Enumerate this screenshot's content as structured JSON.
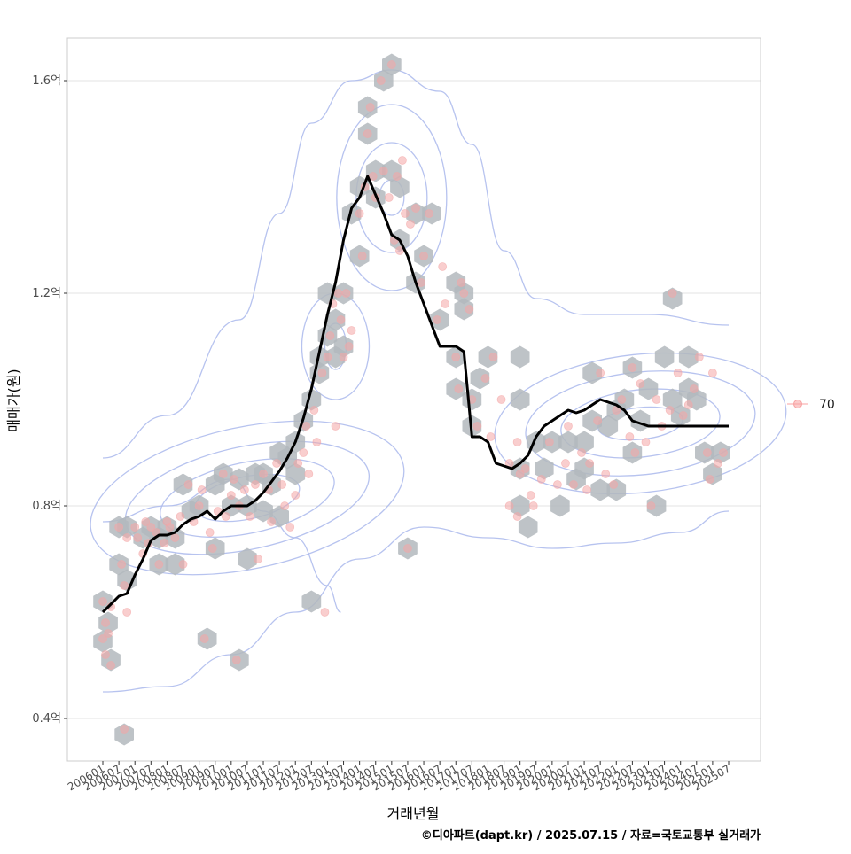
{
  "chart_data": {
    "type": "scatter",
    "title": "",
    "xlabel": "거래년월",
    "ylabel": "매매가(원)",
    "caption": "©디아파트(dapt.kr) / 2025.07.15 / 자료=국토교통부 실거래가",
    "y_unit": "억",
    "ylim": [
      0.32,
      1.68
    ],
    "y_ticks": [
      0.4,
      0.8,
      1.2,
      1.6
    ],
    "y_tick_labels": [
      "0.4억",
      "0.8억",
      "1.2억",
      "1.6억"
    ],
    "x_start": "2006-01",
    "x_end": "2025-07",
    "x_tick_labels": [
      "200601",
      "200607",
      "200701",
      "200707",
      "200801",
      "200807",
      "200901",
      "200907",
      "201001",
      "201007",
      "201101",
      "201107",
      "201201",
      "201207",
      "201301",
      "201307",
      "201401",
      "201407",
      "201501",
      "201507",
      "201601",
      "201607",
      "201701",
      "201707",
      "201801",
      "201807",
      "201901",
      "201907",
      "202001",
      "202007",
      "202101",
      "202107",
      "202201",
      "202207",
      "202301",
      "202307",
      "202401",
      "202407",
      "202501",
      "202507"
    ],
    "grid": true,
    "legend": {
      "position": "right",
      "entries": [
        {
          "label": "70",
          "color": "#f8a0a0"
        }
      ]
    },
    "colors": {
      "points": "#f4a6a6",
      "hexbin": "#b3b8bd",
      "contour": "#aab9ec",
      "trend": "#000000",
      "grid": "#e3e3e3",
      "panel_border": "#cccccc"
    },
    "moving_average": {
      "x": [
        "2006-01",
        "2006-04",
        "2006-07",
        "2006-10",
        "2007-01",
        "2007-04",
        "2007-07",
        "2007-10",
        "2008-01",
        "2008-04",
        "2008-07",
        "2008-10",
        "2009-01",
        "2009-04",
        "2009-07",
        "2009-10",
        "2010-01",
        "2010-04",
        "2010-07",
        "2010-10",
        "2011-01",
        "2011-04",
        "2011-07",
        "2011-10",
        "2012-01",
        "2012-04",
        "2012-07",
        "2012-10",
        "2013-01",
        "2013-04",
        "2013-07",
        "2013-10",
        "2014-01",
        "2014-04",
        "2014-07",
        "2014-10",
        "2015-01",
        "2015-04",
        "2015-07",
        "2015-10",
        "2016-01",
        "2016-04",
        "2016-07",
        "2016-10",
        "2017-01",
        "2017-04",
        "2017-07",
        "2017-10",
        "2018-01",
        "2018-04",
        "2018-07",
        "2018-10",
        "2019-01",
        "2019-04",
        "2019-07",
        "2019-10",
        "2020-01",
        "2020-04",
        "2020-07",
        "2020-10",
        "2021-01",
        "2021-04",
        "2021-07",
        "2021-10",
        "2022-01",
        "2022-04",
        "2022-07",
        "2022-10",
        "2023-01",
        "2023-04",
        "2023-07",
        "2023-10",
        "2024-01",
        "2024-04",
        "2024-07",
        "2024-10",
        "2025-01",
        "2025-04",
        "2025-07"
      ],
      "y": [
        0.6,
        0.615,
        0.63,
        0.635,
        0.67,
        0.7,
        0.735,
        0.745,
        0.745,
        0.75,
        0.765,
        0.775,
        0.78,
        0.79,
        0.775,
        0.79,
        0.8,
        0.8,
        0.8,
        0.81,
        0.825,
        0.845,
        0.865,
        0.89,
        0.92,
        0.965,
        1.02,
        1.09,
        1.16,
        1.22,
        1.3,
        1.36,
        1.38,
        1.42,
        1.385,
        1.35,
        1.31,
        1.3,
        1.27,
        1.22,
        1.18,
        1.14,
        1.1,
        1.1,
        1.1,
        1.09,
        0.93,
        0.93,
        0.92,
        0.88,
        0.875,
        0.87,
        0.88,
        0.895,
        0.93,
        0.95,
        0.96,
        0.97,
        0.98,
        0.975,
        0.98,
        0.99,
        1.0,
        0.995,
        0.99,
        0.98,
        0.96,
        0.955,
        0.95,
        0.95,
        0.95,
        0.95,
        0.95,
        0.95,
        0.95,
        0.95,
        0.95,
        0.95,
        0.95
      ]
    },
    "transactions": [
      [
        "2006-01",
        0.62
      ],
      [
        "2006-01",
        0.55
      ],
      [
        "2006-02",
        0.58
      ],
      [
        "2006-02",
        0.52
      ],
      [
        "2006-03",
        0.56
      ],
      [
        "2006-04",
        0.5
      ],
      [
        "2006-04",
        0.61
      ],
      [
        "2006-07",
        0.76
      ],
      [
        "2006-08",
        0.69
      ],
      [
        "2006-09",
        0.65
      ],
      [
        "2006-10",
        0.74
      ],
      [
        "2006-10",
        0.6
      ],
      [
        "2006-09",
        0.38
      ],
      [
        "2007-01",
        0.76
      ],
      [
        "2007-02",
        0.74
      ],
      [
        "2007-04",
        0.71
      ],
      [
        "2007-05",
        0.77
      ],
      [
        "2007-06",
        0.73
      ],
      [
        "2007-07",
        0.76
      ],
      [
        "2007-09",
        0.75
      ],
      [
        "2007-10",
        0.69
      ],
      [
        "2007-12",
        0.73
      ],
      [
        "2008-01",
        0.77
      ],
      [
        "2008-02",
        0.76
      ],
      [
        "2008-04",
        0.74
      ],
      [
        "2008-06",
        0.78
      ],
      [
        "2008-07",
        0.69
      ],
      [
        "2008-09",
        0.84
      ],
      [
        "2008-11",
        0.77
      ],
      [
        "2009-01",
        0.8
      ],
      [
        "2009-02",
        0.83
      ],
      [
        "2009-03",
        0.55
      ],
      [
        "2009-05",
        0.75
      ],
      [
        "2009-06",
        0.72
      ],
      [
        "2009-08",
        0.79
      ],
      [
        "2009-10",
        0.86
      ],
      [
        "2009-11",
        0.78
      ],
      [
        "2010-01",
        0.82
      ],
      [
        "2010-02",
        0.85
      ],
      [
        "2010-03",
        0.51
      ],
      [
        "2010-04",
        0.8
      ],
      [
        "2010-06",
        0.83
      ],
      [
        "2010-08",
        0.78
      ],
      [
        "2010-10",
        0.84
      ],
      [
        "2010-11",
        0.7
      ],
      [
        "2011-01",
        0.86
      ],
      [
        "2011-03",
        0.83
      ],
      [
        "2011-04",
        0.77
      ],
      [
        "2011-06",
        0.88
      ],
      [
        "2011-08",
        0.84
      ],
      [
        "2011-09",
        0.8
      ],
      [
        "2011-11",
        0.76
      ],
      [
        "2012-01",
        0.82
      ],
      [
        "2012-02",
        0.88
      ],
      [
        "2012-04",
        0.9
      ],
      [
        "2012-05",
        0.95
      ],
      [
        "2012-06",
        0.86
      ],
      [
        "2012-08",
        0.98
      ],
      [
        "2012-09",
        0.92
      ],
      [
        "2012-11",
        1.05
      ],
      [
        "2012-12",
        0.6
      ],
      [
        "2013-01",
        1.08
      ],
      [
        "2013-02",
        1.12
      ],
      [
        "2013-03",
        1.18
      ],
      [
        "2013-04",
        0.95
      ],
      [
        "2013-05",
        1.2
      ],
      [
        "2013-06",
        1.15
      ],
      [
        "2013-07",
        1.08
      ],
      [
        "2013-08",
        1.2
      ],
      [
        "2013-09",
        1.1
      ],
      [
        "2013-10",
        1.13
      ],
      [
        "2014-01",
        1.35
      ],
      [
        "2014-02",
        1.27
      ],
      [
        "2014-03",
        1.4
      ],
      [
        "2014-04",
        1.5
      ],
      [
        "2014-05",
        1.55
      ],
      [
        "2014-06",
        1.42
      ],
      [
        "2014-07",
        1.38
      ],
      [
        "2014-09",
        1.6
      ],
      [
        "2014-10",
        1.43
      ],
      [
        "2014-12",
        1.38
      ],
      [
        "2015-01",
        1.63
      ],
      [
        "2015-03",
        1.42
      ],
      [
        "2015-05",
        1.45
      ],
      [
        "2015-06",
        1.35
      ],
      [
        "2015-02",
        1.3
      ],
      [
        "2015-04",
        1.28
      ],
      [
        "2015-07",
        0.72
      ],
      [
        "2015-08",
        1.33
      ],
      [
        "2015-10",
        1.36
      ],
      [
        "2015-12",
        1.22
      ],
      [
        "2016-01",
        1.27
      ],
      [
        "2016-03",
        1.35
      ],
      [
        "2016-06",
        1.15
      ],
      [
        "2016-08",
        1.25
      ],
      [
        "2016-09",
        1.18
      ],
      [
        "2017-01",
        1.08
      ],
      [
        "2017-02",
        1.02
      ],
      [
        "2017-03",
        1.22
      ],
      [
        "2017-04",
        1.2
      ],
      [
        "2017-06",
        1.17
      ],
      [
        "2017-07",
        1.0
      ],
      [
        "2017-09",
        0.95
      ],
      [
        "2017-12",
        1.04
      ],
      [
        "2018-02",
        0.93
      ],
      [
        "2018-03",
        1.08
      ],
      [
        "2018-09",
        0.88
      ],
      [
        "2018-09",
        0.8
      ],
      [
        "2018-12",
        0.78
      ],
      [
        "2018-06",
        1.0
      ],
      [
        "2018-12",
        0.92
      ],
      [
        "2019-01",
        0.86
      ],
      [
        "2019-03",
        0.87
      ],
      [
        "2019-05",
        0.82
      ],
      [
        "2019-06",
        0.8
      ],
      [
        "2019-09",
        0.85
      ],
      [
        "2019-12",
        0.92
      ],
      [
        "2020-03",
        0.84
      ],
      [
        "2020-06",
        0.88
      ],
      [
        "2020-07",
        0.95
      ],
      [
        "2020-09",
        0.84
      ],
      [
        "2020-12",
        0.9
      ],
      [
        "2021-02",
        0.83
      ],
      [
        "2021-03",
        0.88
      ],
      [
        "2021-06",
        0.96
      ],
      [
        "2021-07",
        1.05
      ],
      [
        "2021-09",
        0.86
      ],
      [
        "2021-12",
        0.84
      ],
      [
        "2022-01",
        0.98
      ],
      [
        "2022-03",
        1.0
      ],
      [
        "2022-06",
        0.93
      ],
      [
        "2022-07",
        1.06
      ],
      [
        "2022-08",
        0.9
      ],
      [
        "2022-10",
        1.03
      ],
      [
        "2022-12",
        0.92
      ],
      [
        "2023-02",
        0.8
      ],
      [
        "2023-04",
        1.0
      ],
      [
        "2023-06",
        0.95
      ],
      [
        "2023-09",
        0.98
      ],
      [
        "2023-10",
        1.2
      ],
      [
        "2023-12",
        1.05
      ],
      [
        "2024-02",
        0.97
      ],
      [
        "2024-04",
        0.99
      ],
      [
        "2024-06",
        1.02
      ],
      [
        "2024-08",
        1.08
      ],
      [
        "2024-11",
        0.9
      ],
      [
        "2024-12",
        0.85
      ],
      [
        "2025-01",
        1.05
      ],
      [
        "2025-03",
        0.88
      ],
      [
        "2025-05",
        0.9
      ]
    ],
    "hexbins": [
      [
        "2006-01",
        0.62
      ],
      [
        "2006-01",
        0.545
      ],
      [
        "2006-03",
        0.58
      ],
      [
        "2006-04",
        0.51
      ],
      [
        "2006-09",
        0.37
      ],
      [
        "2006-07",
        0.76
      ],
      [
        "2006-07",
        0.69
      ],
      [
        "2006-10",
        0.66
      ],
      [
        "2006-10",
        0.76
      ],
      [
        "2007-04",
        0.74
      ],
      [
        "2007-07",
        0.76
      ],
      [
        "2007-10",
        0.69
      ],
      [
        "2007-10",
        0.74
      ],
      [
        "2008-01",
        0.76
      ],
      [
        "2008-04",
        0.74
      ],
      [
        "2008-04",
        0.69
      ],
      [
        "2008-07",
        0.84
      ],
      [
        "2008-10",
        0.79
      ],
      [
        "2009-01",
        0.8
      ],
      [
        "2009-04",
        0.55
      ],
      [
        "2009-07",
        0.72
      ],
      [
        "2009-07",
        0.84
      ],
      [
        "2009-10",
        0.86
      ],
      [
        "2010-01",
        0.8
      ],
      [
        "2010-04",
        0.51
      ],
      [
        "2010-04",
        0.85
      ],
      [
        "2010-07",
        0.8
      ],
      [
        "2010-07",
        0.7
      ],
      [
        "2010-10",
        0.86
      ],
      [
        "2011-01",
        0.86
      ],
      [
        "2011-01",
        0.79
      ],
      [
        "2011-04",
        0.84
      ],
      [
        "2011-07",
        0.9
      ],
      [
        "2011-07",
        0.78
      ],
      [
        "2011-10",
        0.89
      ],
      [
        "2012-01",
        0.92
      ],
      [
        "2012-01",
        0.86
      ],
      [
        "2012-04",
        0.96
      ],
      [
        "2012-07",
        1.0
      ],
      [
        "2012-10",
        1.05
      ],
      [
        "2012-07",
        0.62
      ],
      [
        "2012-10",
        1.08
      ],
      [
        "2013-01",
        1.12
      ],
      [
        "2013-01",
        1.2
      ],
      [
        "2013-04",
        1.15
      ],
      [
        "2013-04",
        1.08
      ],
      [
        "2013-07",
        1.2
      ],
      [
        "2013-07",
        1.1
      ],
      [
        "2013-10",
        1.35
      ],
      [
        "2014-01",
        1.27
      ],
      [
        "2014-01",
        1.4
      ],
      [
        "2014-04",
        1.5
      ],
      [
        "2014-04",
        1.55
      ],
      [
        "2014-07",
        1.38
      ],
      [
        "2014-07",
        1.43
      ],
      [
        "2014-10",
        1.6
      ],
      [
        "2015-01",
        1.63
      ],
      [
        "2015-01",
        1.43
      ],
      [
        "2015-04",
        1.4
      ],
      [
        "2015-04",
        1.3
      ],
      [
        "2015-07",
        0.72
      ],
      [
        "2015-10",
        1.35
      ],
      [
        "2015-10",
        1.22
      ],
      [
        "2016-01",
        1.27
      ],
      [
        "2016-04",
        1.35
      ],
      [
        "2016-07",
        1.15
      ],
      [
        "2017-01",
        1.08
      ],
      [
        "2017-01",
        1.22
      ],
      [
        "2017-04",
        1.2
      ],
      [
        "2017-01",
        1.02
      ],
      [
        "2017-04",
        1.17
      ],
      [
        "2017-07",
        1.0
      ],
      [
        "2017-07",
        0.95
      ],
      [
        "2017-10",
        1.04
      ],
      [
        "2018-01",
        1.08
      ],
      [
        "2019-01",
        1.08
      ],
      [
        "2019-01",
        1.0
      ],
      [
        "2019-01",
        0.87
      ],
      [
        "2019-01",
        0.8
      ],
      [
        "2019-04",
        0.76
      ],
      [
        "2019-07",
        0.92
      ],
      [
        "2019-10",
        0.87
      ],
      [
        "2020-01",
        0.92
      ],
      [
        "2020-04",
        0.8
      ],
      [
        "2020-07",
        0.92
      ],
      [
        "2020-10",
        0.85
      ],
      [
        "2021-01",
        0.92
      ],
      [
        "2021-01",
        0.87
      ],
      [
        "2021-04",
        1.05
      ],
      [
        "2021-04",
        0.96
      ],
      [
        "2021-07",
        0.83
      ],
      [
        "2021-10",
        0.95
      ],
      [
        "2022-01",
        0.98
      ],
      [
        "2022-01",
        0.83
      ],
      [
        "2022-04",
        1.0
      ],
      [
        "2022-07",
        1.06
      ],
      [
        "2022-07",
        0.9
      ],
      [
        "2022-10",
        0.96
      ],
      [
        "2023-01",
        1.02
      ],
      [
        "2023-04",
        0.8
      ],
      [
        "2023-07",
        1.08
      ],
      [
        "2023-10",
        1.19
      ],
      [
        "2023-10",
        1.0
      ],
      [
        "2024-01",
        0.97
      ],
      [
        "2024-04",
        1.08
      ],
      [
        "2024-04",
        1.02
      ],
      [
        "2024-07",
        1.0
      ],
      [
        "2024-10",
        0.9
      ],
      [
        "2025-01",
        0.86
      ],
      [
        "2025-04",
        0.9
      ]
    ],
    "density_contours": [
      [
        [
          "2006-01",
          0.77
        ],
        [
          "2008-01",
          0.8
        ],
        [
          "2010-01",
          0.85
        ],
        [
          "2011-01",
          0.79
        ],
        [
          "2012-01",
          0.74
        ],
        [
          "2013-01",
          0.65
        ],
        [
          "2013-06",
          0.6
        ]
      ],
      [
        [
          "2006-01",
          0.45
        ],
        [
          "2008-01",
          0.46
        ],
        [
          "2010-01",
          0.52
        ],
        [
          "2012-01",
          0.6
        ],
        [
          "2014-01",
          0.7
        ],
        [
          "2016-01",
          0.76
        ],
        [
          "2018-01",
          0.74
        ],
        [
          "2020-01",
          0.72
        ],
        [
          "2022-01",
          0.73
        ],
        [
          "2024-01",
          0.75
        ],
        [
          "2025-07",
          0.79
        ]
      ],
      [
        [
          "2006-01",
          0.89
        ],
        [
          "2008-01",
          0.97
        ],
        [
          "2010-04",
          1.15
        ],
        [
          "2011-07",
          1.35
        ],
        [
          "2012-07",
          1.52
        ],
        [
          "2013-10",
          1.6
        ],
        [
          "2015-01",
          1.62
        ],
        [
          "2016-07",
          1.58
        ],
        [
          "2017-07",
          1.48
        ],
        [
          "2018-07",
          1.28
        ],
        [
          "2019-07",
          1.19
        ],
        [
          "2021-01",
          1.16
        ],
        [
          "2023-01",
          1.16
        ],
        [
          "2025-07",
          1.14
        ]
      ]
    ]
  }
}
